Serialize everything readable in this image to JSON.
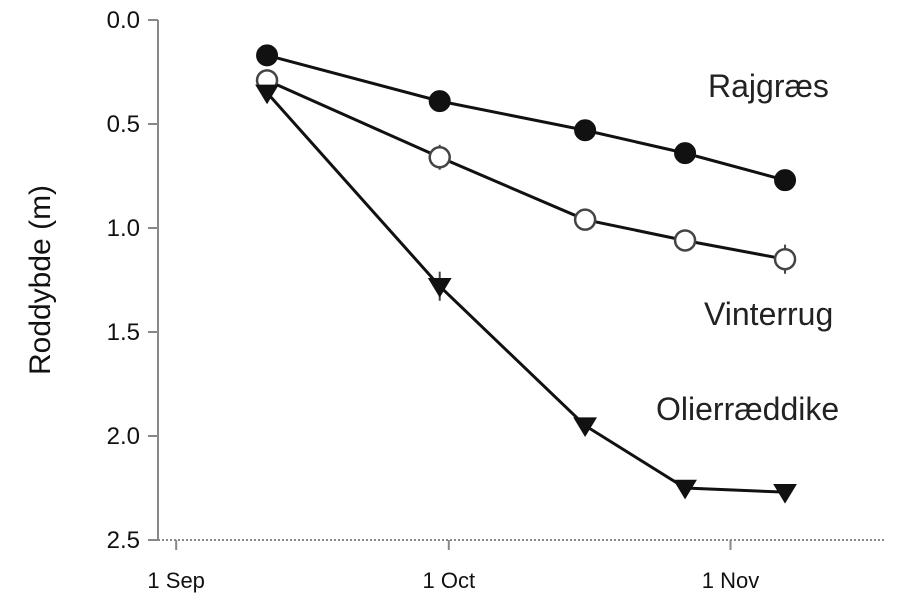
{
  "chart_data": {
    "type": "line",
    "title": "",
    "xlabel": "",
    "ylabel": "Roddybde (m)",
    "x_axis": {
      "ticks": [
        {
          "date": "1 Sep",
          "label": "1 Sep"
        },
        {
          "date": "1 Oct",
          "label": "1 Oct"
        },
        {
          "date": "1 Nov",
          "label": "1 Nov"
        }
      ],
      "range": [
        "30 Aug",
        "18 Nov"
      ]
    },
    "y_axis": {
      "ticks": [
        "0.0",
        "0.5",
        "1.0",
        "1.5",
        "2.0",
        "2.5"
      ],
      "ylim": [
        0.0,
        2.5
      ],
      "inverted": true
    },
    "grid": false,
    "legend": "direct labels",
    "series": [
      {
        "name": "Rajgræs",
        "marker": "filled-circle",
        "color": "#111111",
        "points": [
          {
            "x": "11 Sep",
            "y": 0.17
          },
          {
            "x": "30 Sep",
            "y": 0.39
          },
          {
            "x": "16 Oct",
            "y": 0.53
          },
          {
            "x": "27 Oct",
            "y": 0.64
          },
          {
            "x": "7 Nov",
            "y": 0.77
          }
        ]
      },
      {
        "name": "Vinterrug",
        "marker": "open-circle",
        "color": "#111111",
        "points": [
          {
            "x": "11 Sep",
            "y": 0.29,
            "err": 0.03
          },
          {
            "x": "30 Sep",
            "y": 0.66,
            "err": 0.06
          },
          {
            "x": "16 Oct",
            "y": 0.96,
            "err": 0.03
          },
          {
            "x": "27 Oct",
            "y": 1.06,
            "err": 0.03
          },
          {
            "x": "7 Nov",
            "y": 1.15,
            "err": 0.07
          }
        ]
      },
      {
        "name": "Olierræddike",
        "marker": "filled-triangle-down",
        "color": "#111111",
        "points": [
          {
            "x": "11 Sep",
            "y": 0.35
          },
          {
            "x": "30 Sep",
            "y": 1.28,
            "err": 0.07
          },
          {
            "x": "16 Oct",
            "y": 1.95
          },
          {
            "x": "27 Oct",
            "y": 2.25
          },
          {
            "x": "7 Nov",
            "y": 2.27
          }
        ]
      }
    ],
    "series_labels": {
      "rajgraes": "Rajgræs",
      "vinterrug": "Vinterrug",
      "olieraeddike": "Olierræddike"
    }
  }
}
